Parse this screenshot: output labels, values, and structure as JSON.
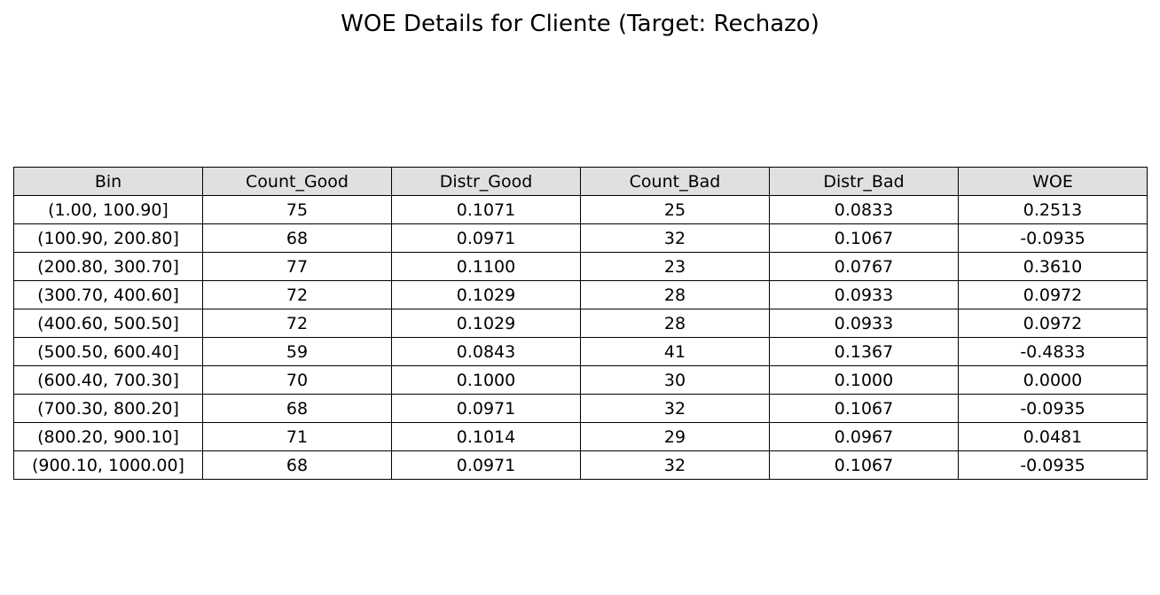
{
  "chart_data": {
    "type": "table",
    "title": "WOE Details for Cliente (Target: Rechazo)",
    "columns": [
      "Bin",
      "Count_Good",
      "Distr_Good",
      "Count_Bad",
      "Distr_Bad",
      "WOE"
    ],
    "rows": [
      [
        "(1.00, 100.90]",
        "75",
        "0.1071",
        "25",
        "0.0833",
        "0.2513"
      ],
      [
        "(100.90, 200.80]",
        "68",
        "0.0971",
        "32",
        "0.1067",
        "-0.0935"
      ],
      [
        "(200.80, 300.70]",
        "77",
        "0.1100",
        "23",
        "0.0767",
        "0.3610"
      ],
      [
        "(300.70, 400.60]",
        "72",
        "0.1029",
        "28",
        "0.0933",
        "0.0972"
      ],
      [
        "(400.60, 500.50]",
        "72",
        "0.1029",
        "28",
        "0.0933",
        "0.0972"
      ],
      [
        "(500.50, 600.40]",
        "59",
        "0.0843",
        "41",
        "0.1367",
        "-0.4833"
      ],
      [
        "(600.40, 700.30]",
        "70",
        "0.1000",
        "30",
        "0.1000",
        "0.0000"
      ],
      [
        "(700.30, 800.20]",
        "68",
        "0.0971",
        "32",
        "0.1067",
        "-0.0935"
      ],
      [
        "(800.20, 900.10]",
        "71",
        "0.1014",
        "29",
        "0.0967",
        "0.0481"
      ],
      [
        "(900.10, 1000.00]",
        "68",
        "0.0971",
        "32",
        "0.1067",
        "-0.0935"
      ]
    ],
    "header_color": "#e0e0e0",
    "border_color": "#000000"
  }
}
